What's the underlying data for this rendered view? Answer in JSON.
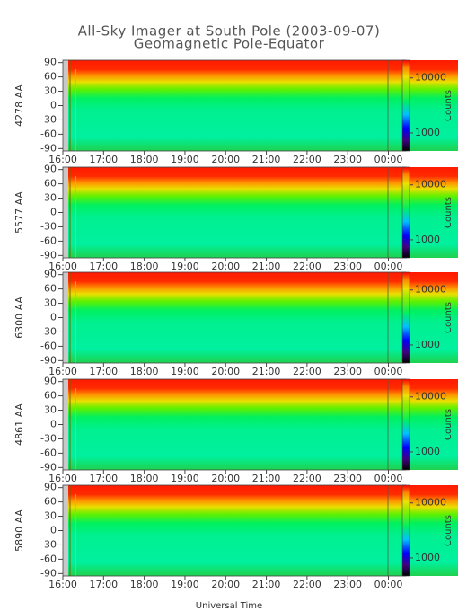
{
  "title": "All-Sky Imager at South Pole (2003-09-07)",
  "subtitle": "Geomagnetic Pole-Equator",
  "xlabel": "Universal Time",
  "chart_data": [
    {
      "type": "heatmap",
      "ylabel": "4278 AA",
      "ylim": [
        -95,
        95
      ],
      "yticks": [
        -90,
        -60,
        -30,
        0,
        30,
        60,
        90
      ],
      "xlim": [
        16,
        24.43
      ],
      "xticks": [
        {
          "value": 16,
          "label": "16:00"
        },
        {
          "value": 17,
          "label": "17:00"
        },
        {
          "value": 18,
          "label": "18:00"
        },
        {
          "value": 19,
          "label": "19:00"
        },
        {
          "value": 20,
          "label": "20:00"
        },
        {
          "value": 21,
          "label": "21:00"
        },
        {
          "value": 22,
          "label": "22:00"
        },
        {
          "value": 23,
          "label": "23:00"
        },
        {
          "value": 24,
          "label": "00:00"
        }
      ],
      "colorbar": {
        "label": "Counts",
        "log": true,
        "lim": [
          470,
          21000
        ],
        "ticks": [
          1000,
          10000
        ]
      }
    },
    {
      "type": "heatmap",
      "ylabel": "5577 AA",
      "ylim": [
        -95,
        95
      ],
      "yticks": [
        -90,
        -60,
        -30,
        0,
        30,
        60,
        90
      ],
      "xlim": [
        16,
        24.43
      ],
      "xticks": [
        {
          "value": 16,
          "label": "16:00"
        },
        {
          "value": 17,
          "label": "17:00"
        },
        {
          "value": 18,
          "label": "18:00"
        },
        {
          "value": 19,
          "label": "19:00"
        },
        {
          "value": 20,
          "label": "20:00"
        },
        {
          "value": 21,
          "label": "21:00"
        },
        {
          "value": 22,
          "label": "22:00"
        },
        {
          "value": 23,
          "label": "23:00"
        },
        {
          "value": 24,
          "label": "00:00"
        }
      ],
      "colorbar": {
        "label": "Counts",
        "log": true,
        "lim": [
          470,
          21000
        ],
        "ticks": [
          1000,
          10000
        ]
      }
    },
    {
      "type": "heatmap",
      "ylabel": "6300 AA",
      "ylim": [
        -95,
        95
      ],
      "yticks": [
        -90,
        -60,
        -30,
        0,
        30,
        60,
        90
      ],
      "xlim": [
        16,
        24.43
      ],
      "xticks": [
        {
          "value": 16,
          "label": "16:00"
        },
        {
          "value": 17,
          "label": "17:00"
        },
        {
          "value": 18,
          "label": "18:00"
        },
        {
          "value": 19,
          "label": "19:00"
        },
        {
          "value": 20,
          "label": "20:00"
        },
        {
          "value": 21,
          "label": "21:00"
        },
        {
          "value": 22,
          "label": "22:00"
        },
        {
          "value": 23,
          "label": "23:00"
        },
        {
          "value": 24,
          "label": "00:00"
        }
      ],
      "colorbar": {
        "label": "Counts",
        "log": true,
        "lim": [
          470,
          21000
        ],
        "ticks": [
          1000,
          10000
        ]
      }
    },
    {
      "type": "heatmap",
      "ylabel": "4861 AA",
      "ylim": [
        -95,
        95
      ],
      "yticks": [
        -90,
        -60,
        -30,
        0,
        30,
        60,
        90
      ],
      "xlim": [
        16,
        24.43
      ],
      "xticks": [
        {
          "value": 16,
          "label": "16:00"
        },
        {
          "value": 17,
          "label": "17:00"
        },
        {
          "value": 18,
          "label": "18:00"
        },
        {
          "value": 19,
          "label": "19:00"
        },
        {
          "value": 20,
          "label": "20:00"
        },
        {
          "value": 21,
          "label": "21:00"
        },
        {
          "value": 22,
          "label": "22:00"
        },
        {
          "value": 23,
          "label": "23:00"
        },
        {
          "value": 24,
          "label": "00:00"
        }
      ],
      "colorbar": {
        "label": "Counts",
        "log": true,
        "lim": [
          470,
          21000
        ],
        "ticks": [
          1000,
          10000
        ]
      }
    },
    {
      "type": "heatmap",
      "ylabel": "5890 AA",
      "ylim": [
        -95,
        95
      ],
      "yticks": [
        -90,
        -60,
        -30,
        0,
        30,
        60,
        90
      ],
      "xlim": [
        16,
        24.43
      ],
      "xticks": [
        {
          "value": 16,
          "label": "16:00"
        },
        {
          "value": 17,
          "label": "17:00"
        },
        {
          "value": 18,
          "label": "18:00"
        },
        {
          "value": 19,
          "label": "19:00"
        },
        {
          "value": 20,
          "label": "20:00"
        },
        {
          "value": 21,
          "label": "21:00"
        },
        {
          "value": 22,
          "label": "22:00"
        },
        {
          "value": 23,
          "label": "23:00"
        },
        {
          "value": 24,
          "label": "00:00"
        }
      ],
      "colorbar": {
        "label": "Counts",
        "log": true,
        "lim": [
          470,
          21000
        ],
        "ticks": [
          1000,
          10000
        ]
      }
    }
  ]
}
